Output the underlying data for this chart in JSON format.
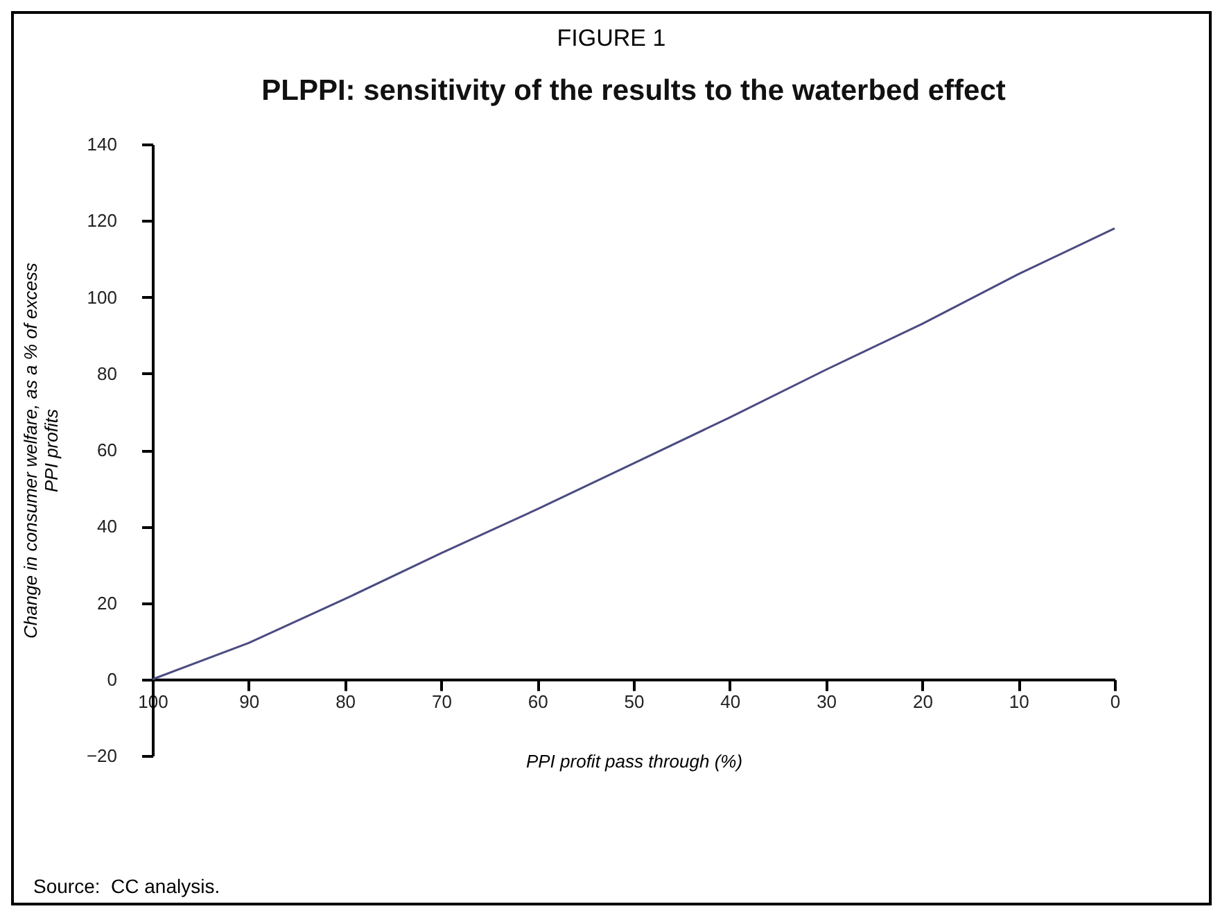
{
  "chart_data": {
    "type": "line",
    "title": "PLPPI: sensitivity of the results to the waterbed effect",
    "annotations": [
      "FIGURE 1",
      "Source:  CC analysis."
    ],
    "xlabel": "PPI profit pass through (%)",
    "ylabel": "Change in consumer welfare, as a % of excess\nPPI profits",
    "x": [
      100,
      90,
      80,
      70,
      60,
      50,
      40,
      30,
      20,
      10,
      0
    ],
    "series": [
      {
        "color": "#4b4b82",
        "values": [
          0,
          9.5,
          21,
          33,
          44.5,
          56.5,
          68.5,
          81,
          93,
          106,
          118
        ]
      }
    ],
    "xlim": [
      100,
      0
    ],
    "xticks": [
      100,
      90,
      80,
      70,
      60,
      50,
      40,
      30,
      20,
      10,
      0
    ],
    "ylim": [
      -20,
      140
    ],
    "yticks": [
      -20,
      0,
      20,
      40,
      60,
      80,
      100,
      120,
      140
    ],
    "grid": false,
    "marker": "none",
    "line_style": "solid"
  }
}
